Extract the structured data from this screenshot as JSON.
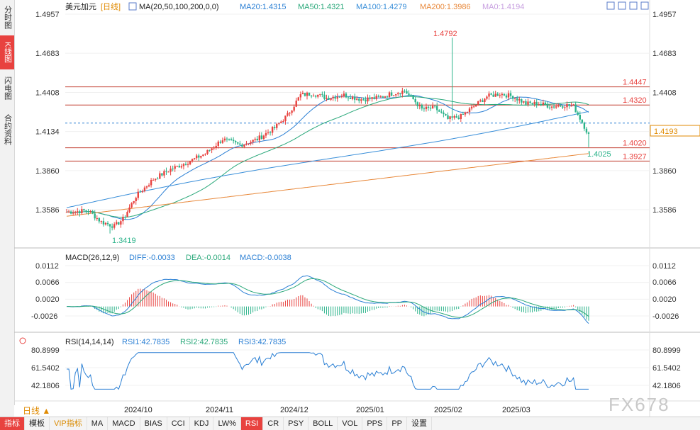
{
  "sidebar": {
    "tabs": [
      {
        "label": "分时图",
        "active": false
      },
      {
        "label": "K线图",
        "active": true
      },
      {
        "label": "闪电图",
        "active": false
      },
      {
        "label": "合约资料",
        "active": false
      }
    ]
  },
  "main_chart": {
    "symbol": "美元加元",
    "period_tag": "[日线]",
    "ma_title": "MA(20,50,100,200,0,0)",
    "ma_values": [
      {
        "label": "MA20:1.4315",
        "color": "#2a7fd4"
      },
      {
        "label": "MA50:1.4321",
        "color": "#2aa87a"
      },
      {
        "label": "MA100:1.4279",
        "color": "#3a8fd9"
      },
      {
        "label": "MA200:1.3986",
        "color": "#e8883a"
      },
      {
        "label": "MA0:1.4194",
        "color": "#c8a0e0"
      }
    ],
    "y_ticks": [
      "1.4957",
      "1.4683",
      "1.4408",
      "1.4134",
      "1.3860",
      "1.3586"
    ],
    "price_lines": [
      {
        "label": "1.4447",
        "value": 1.4447
      },
      {
        "label": "1.4320",
        "value": 1.432
      },
      {
        "label": "1.4020",
        "value": 1.402
      },
      {
        "label": "1.3927",
        "value": 1.3927
      }
    ],
    "dashed_line": {
      "value": 1.4193
    },
    "current_price_label": "1.4193",
    "annotations": {
      "high": "1.4792",
      "low": "1.3419",
      "last_low": "1.4025"
    }
  },
  "macd": {
    "title": "MACD(26,12,9)",
    "diff": "DIFF:-0.0033",
    "dea": "DEA:-0.0014",
    "macd": "MACD:-0.0038",
    "y_ticks": [
      "0.0112",
      "0.0066",
      "0.0020",
      "-0.0026"
    ]
  },
  "rsi": {
    "title": "RSI(14,14,14)",
    "rsi1": "RSI1:42.7835",
    "rsi2": "RSI2:42.7835",
    "rsi3": "RSI3:42.7835",
    "y_ticks": [
      "80.8999",
      "61.5402",
      "42.1806"
    ]
  },
  "x_axis": {
    "labels": [
      "2024/10",
      "2024/11",
      "2024/12",
      "2025/01",
      "2025/02",
      "2025/03"
    ]
  },
  "period_button": "日线 ▲",
  "toolbar": {
    "items": [
      "指标",
      "模板",
      "VIP指标",
      "MA",
      "MACD",
      "BIAS",
      "CCI",
      "KDJ",
      "LW%",
      "RSI",
      "CR",
      "PSY",
      "BOLL",
      "VOL",
      "PPS",
      "PP",
      "设置"
    ],
    "selected": "RSI"
  },
  "watermark": "FX678",
  "colors": {
    "up": "#e8423f",
    "down": "#2bb38a",
    "ma_blue": "#2a7fd4",
    "ma_green": "#2aa87a",
    "ma_orange": "#e8883a",
    "macd_diff": "#2a7fd4",
    "macd_dea": "#2aa87a",
    "rsi": "#2a7fd4"
  }
}
